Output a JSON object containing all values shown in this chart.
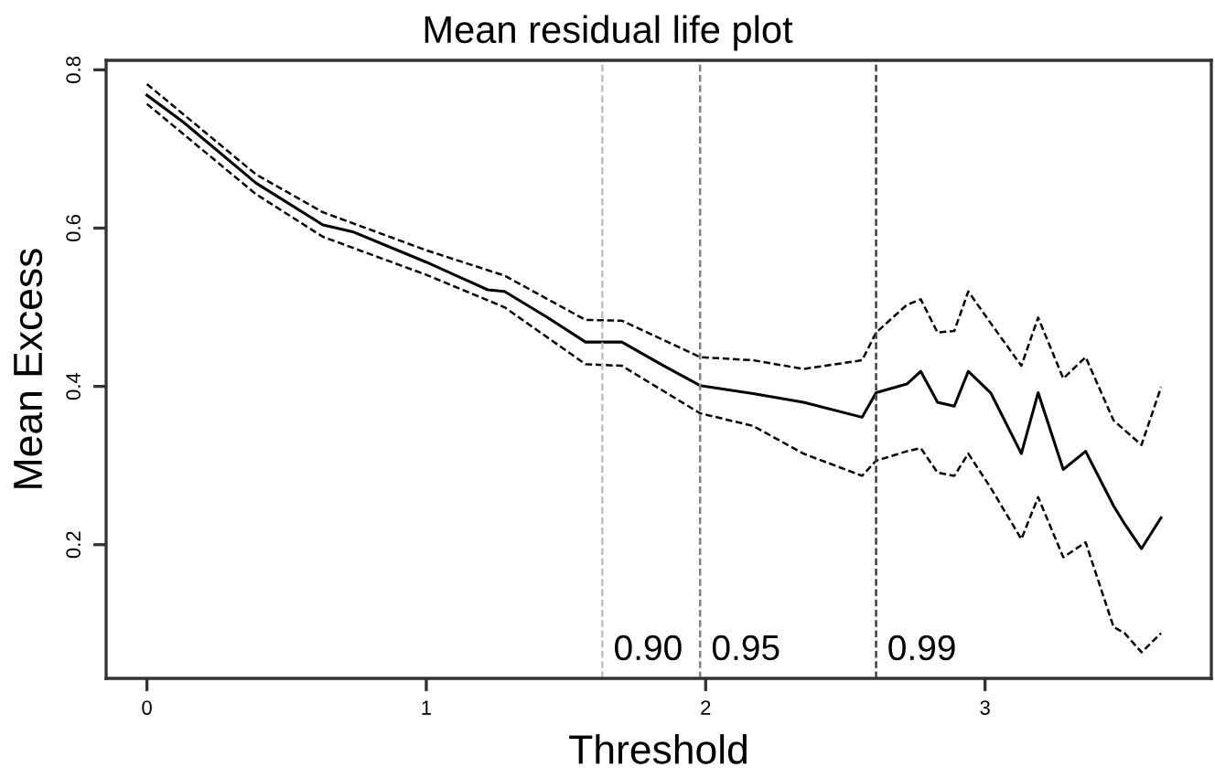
{
  "chart_data": {
    "type": "line",
    "title": "Mean residual life plot",
    "xlabel": "Threshold",
    "ylabel": "Mean Excess",
    "xlim": [
      -0.146,
      3.81
    ],
    "ylim": [
      0.031,
      0.812
    ],
    "xticks": [
      0,
      1,
      2,
      3
    ],
    "yticks": [
      0.2,
      0.4,
      0.6,
      0.8
    ],
    "grid": false,
    "marker": "none",
    "annotations": [
      {
        "text": "0.90",
        "x": 1.63,
        "y": 0.045
      },
      {
        "text": "0.95",
        "x": 1.98,
        "y": 0.045
      },
      {
        "text": "0.99",
        "x": 2.61,
        "y": 0.045
      }
    ],
    "series": [
      {
        "color": "#000000",
        "line_style": "solid",
        "x": [
          0,
          0.13,
          0.39,
          0.63,
          0.74,
          1.0,
          1.22,
          1.28,
          1.43,
          1.57,
          1.7,
          1.85,
          1.98,
          2.17,
          2.35,
          2.56,
          2.61,
          2.72,
          2.77,
          2.83,
          2.89,
          2.94,
          3.02,
          3.13,
          3.19,
          3.28,
          3.36,
          3.46,
          3.5,
          3.56,
          3.63
        ],
        "values": [
          0.768,
          0.734,
          0.657,
          0.604,
          0.595,
          0.557,
          0.522,
          0.52,
          0.488,
          0.456,
          0.456,
          0.426,
          0.401,
          0.391,
          0.38,
          0.361,
          0.392,
          0.403,
          0.419,
          0.38,
          0.375,
          0.419,
          0.392,
          0.315,
          0.392,
          0.295,
          0.318,
          0.249,
          0.226,
          0.195,
          0.234
        ]
      },
      {
        "color": "#000000",
        "line_style": "dashed",
        "x": [
          0,
          0.39,
          0.63,
          1.0,
          1.28,
          1.57,
          1.7,
          1.98,
          2.17,
          2.35,
          2.56,
          2.61,
          2.72,
          2.77,
          2.83,
          2.89,
          2.94,
          3.02,
          3.13,
          3.19,
          3.28,
          3.36,
          3.46,
          3.56,
          3.63
        ],
        "values": [
          0.782,
          0.668,
          0.62,
          0.572,
          0.54,
          0.484,
          0.483,
          0.437,
          0.433,
          0.422,
          0.433,
          0.468,
          0.503,
          0.51,
          0.468,
          0.47,
          0.52,
          0.48,
          0.426,
          0.487,
          0.41,
          0.437,
          0.357,
          0.326,
          0.399
        ]
      },
      {
        "color": "#000000",
        "line_style": "dashed",
        "x": [
          0,
          0.39,
          0.63,
          1.0,
          1.28,
          1.57,
          1.7,
          1.98,
          2.17,
          2.35,
          2.56,
          2.61,
          2.72,
          2.77,
          2.83,
          2.89,
          2.94,
          3.02,
          3.13,
          3.19,
          3.28,
          3.36,
          3.46,
          3.5,
          3.56,
          3.63
        ],
        "values": [
          0.757,
          0.643,
          0.589,
          0.541,
          0.5,
          0.428,
          0.426,
          0.366,
          0.35,
          0.315,
          0.287,
          0.306,
          0.318,
          0.322,
          0.291,
          0.287,
          0.315,
          0.272,
          0.207,
          0.26,
          0.184,
          0.203,
          0.096,
          0.088,
          0.064,
          0.088
        ]
      }
    ],
    "ref_lines": [
      {
        "axis": "x",
        "value": 1.63,
        "color": "#c0c0c0",
        "line_style": "dashed"
      },
      {
        "axis": "x",
        "value": 1.98,
        "color": "#808080",
        "line_style": "dashed"
      },
      {
        "axis": "x",
        "value": 2.61,
        "color": "#404040",
        "line_style": "dashed"
      }
    ]
  }
}
